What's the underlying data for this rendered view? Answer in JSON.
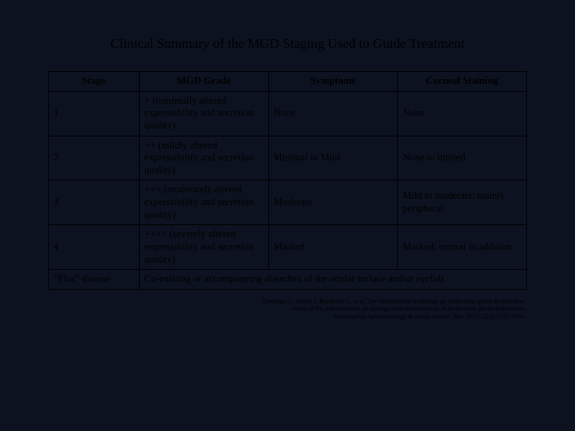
{
  "title": "Clinical Summary of the MGD Staging Used to Guide Treatment",
  "colors": {
    "background": "#0c1220",
    "text": "#000000",
    "border": "#000000"
  },
  "table": {
    "headers": {
      "stage": "Stage",
      "grade": "MGD Grade",
      "symptoms": "Symptoms",
      "staining": "Corneal Staining"
    },
    "rows": [
      {
        "stage": "1",
        "grade": "+ (minimally altered expressibility and secretion quality)",
        "symptoms": "None",
        "staining": "None"
      },
      {
        "stage": "2",
        "grade": "++ (mildly altered expressibility and secretion quality)",
        "symptoms": "Minimal to Mild",
        "staining": "None to limited"
      },
      {
        "stage": "3",
        "grade": "+++ (moderately altered expressibility and secretion quality)",
        "symptoms": "Moderate",
        "staining": "Mild to moderate; mainly peripheral"
      },
      {
        "stage": "4",
        "grade": "++++ (severely altered expressibility and secretion quality)",
        "symptoms": "Marked",
        "staining": "Marked; central in addition"
      }
    ],
    "plus_row": {
      "stage": "“Plus” disease",
      "desc": "Co-existing or accompanying disorders of the ocular surface and/or eyelids"
    }
  },
  "citation": {
    "line1": "Geerling G, Tauber J, Baudouin C, et al. The international workshop on meibomian gland dysfunction:",
    "line2": "report of the subcommittee on management and treatment of meibomian gland dysfunction.",
    "line3": "Investigative ophthalmology & visual science. Mar 2011;52(4):2050-2064."
  }
}
